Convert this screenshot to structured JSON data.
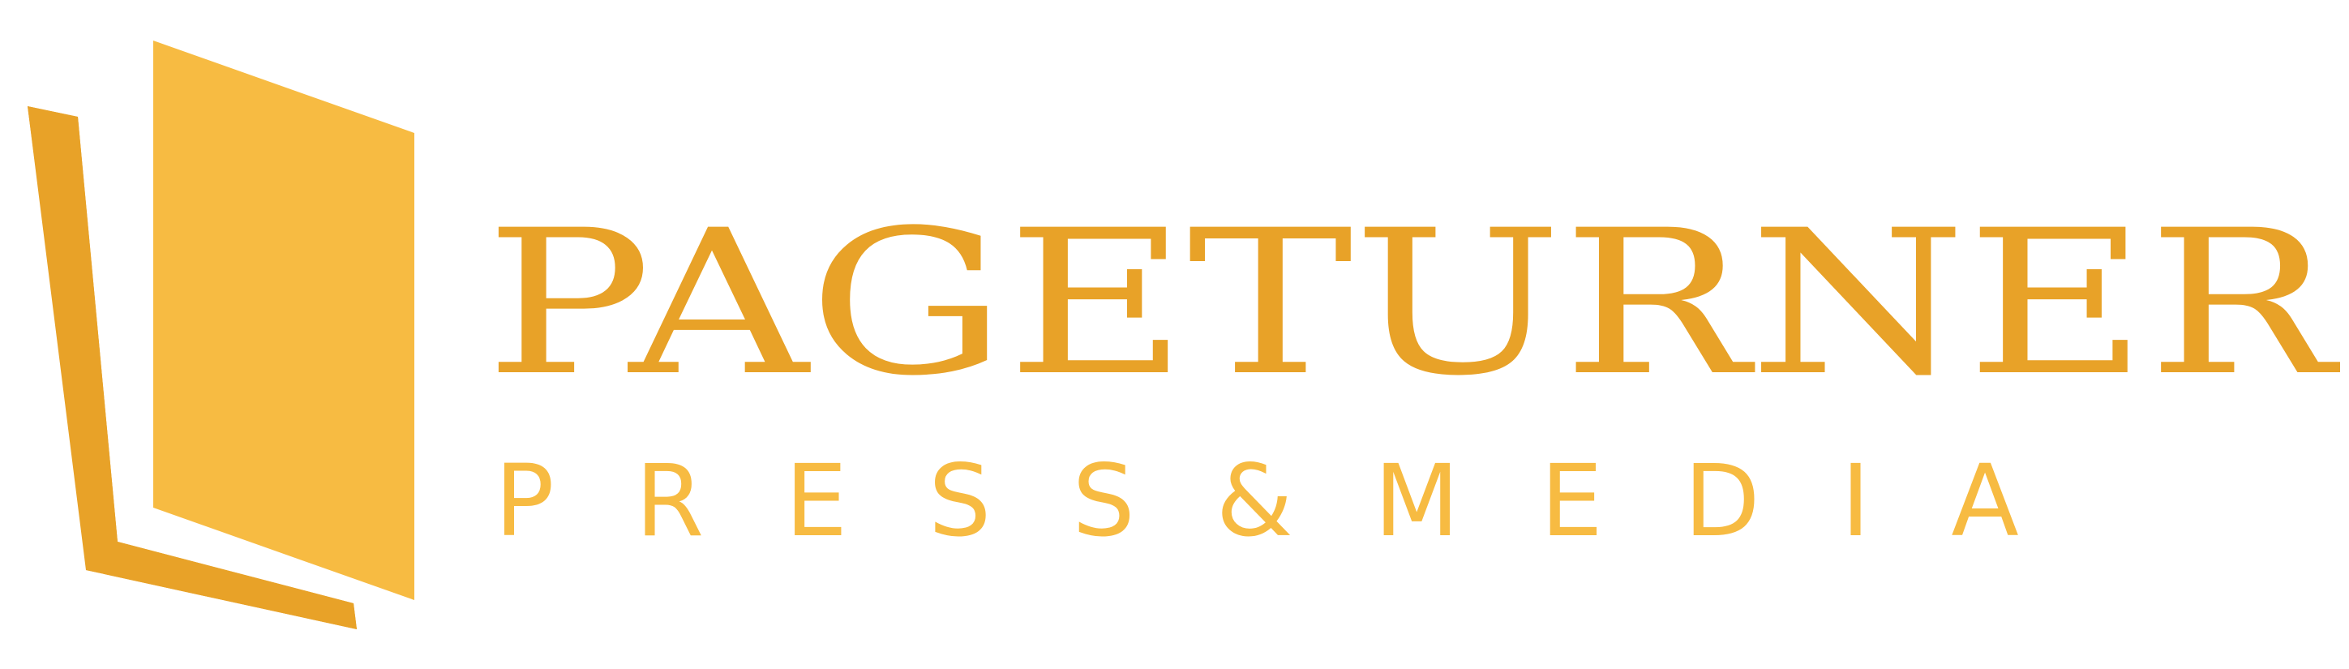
{
  "brand": {
    "name": "PAGETURNER",
    "tagline_letters": [
      "P",
      "R",
      "E",
      "S",
      "S",
      "&",
      "M",
      "E",
      "D",
      "I",
      "A"
    ]
  },
  "colors": {
    "primary": "#e8a228",
    "secondary": "#f7bb42",
    "page_back": "#e8a228",
    "page_front": "#f7bb42"
  },
  "logo": {
    "icon": "book-pages-icon"
  }
}
